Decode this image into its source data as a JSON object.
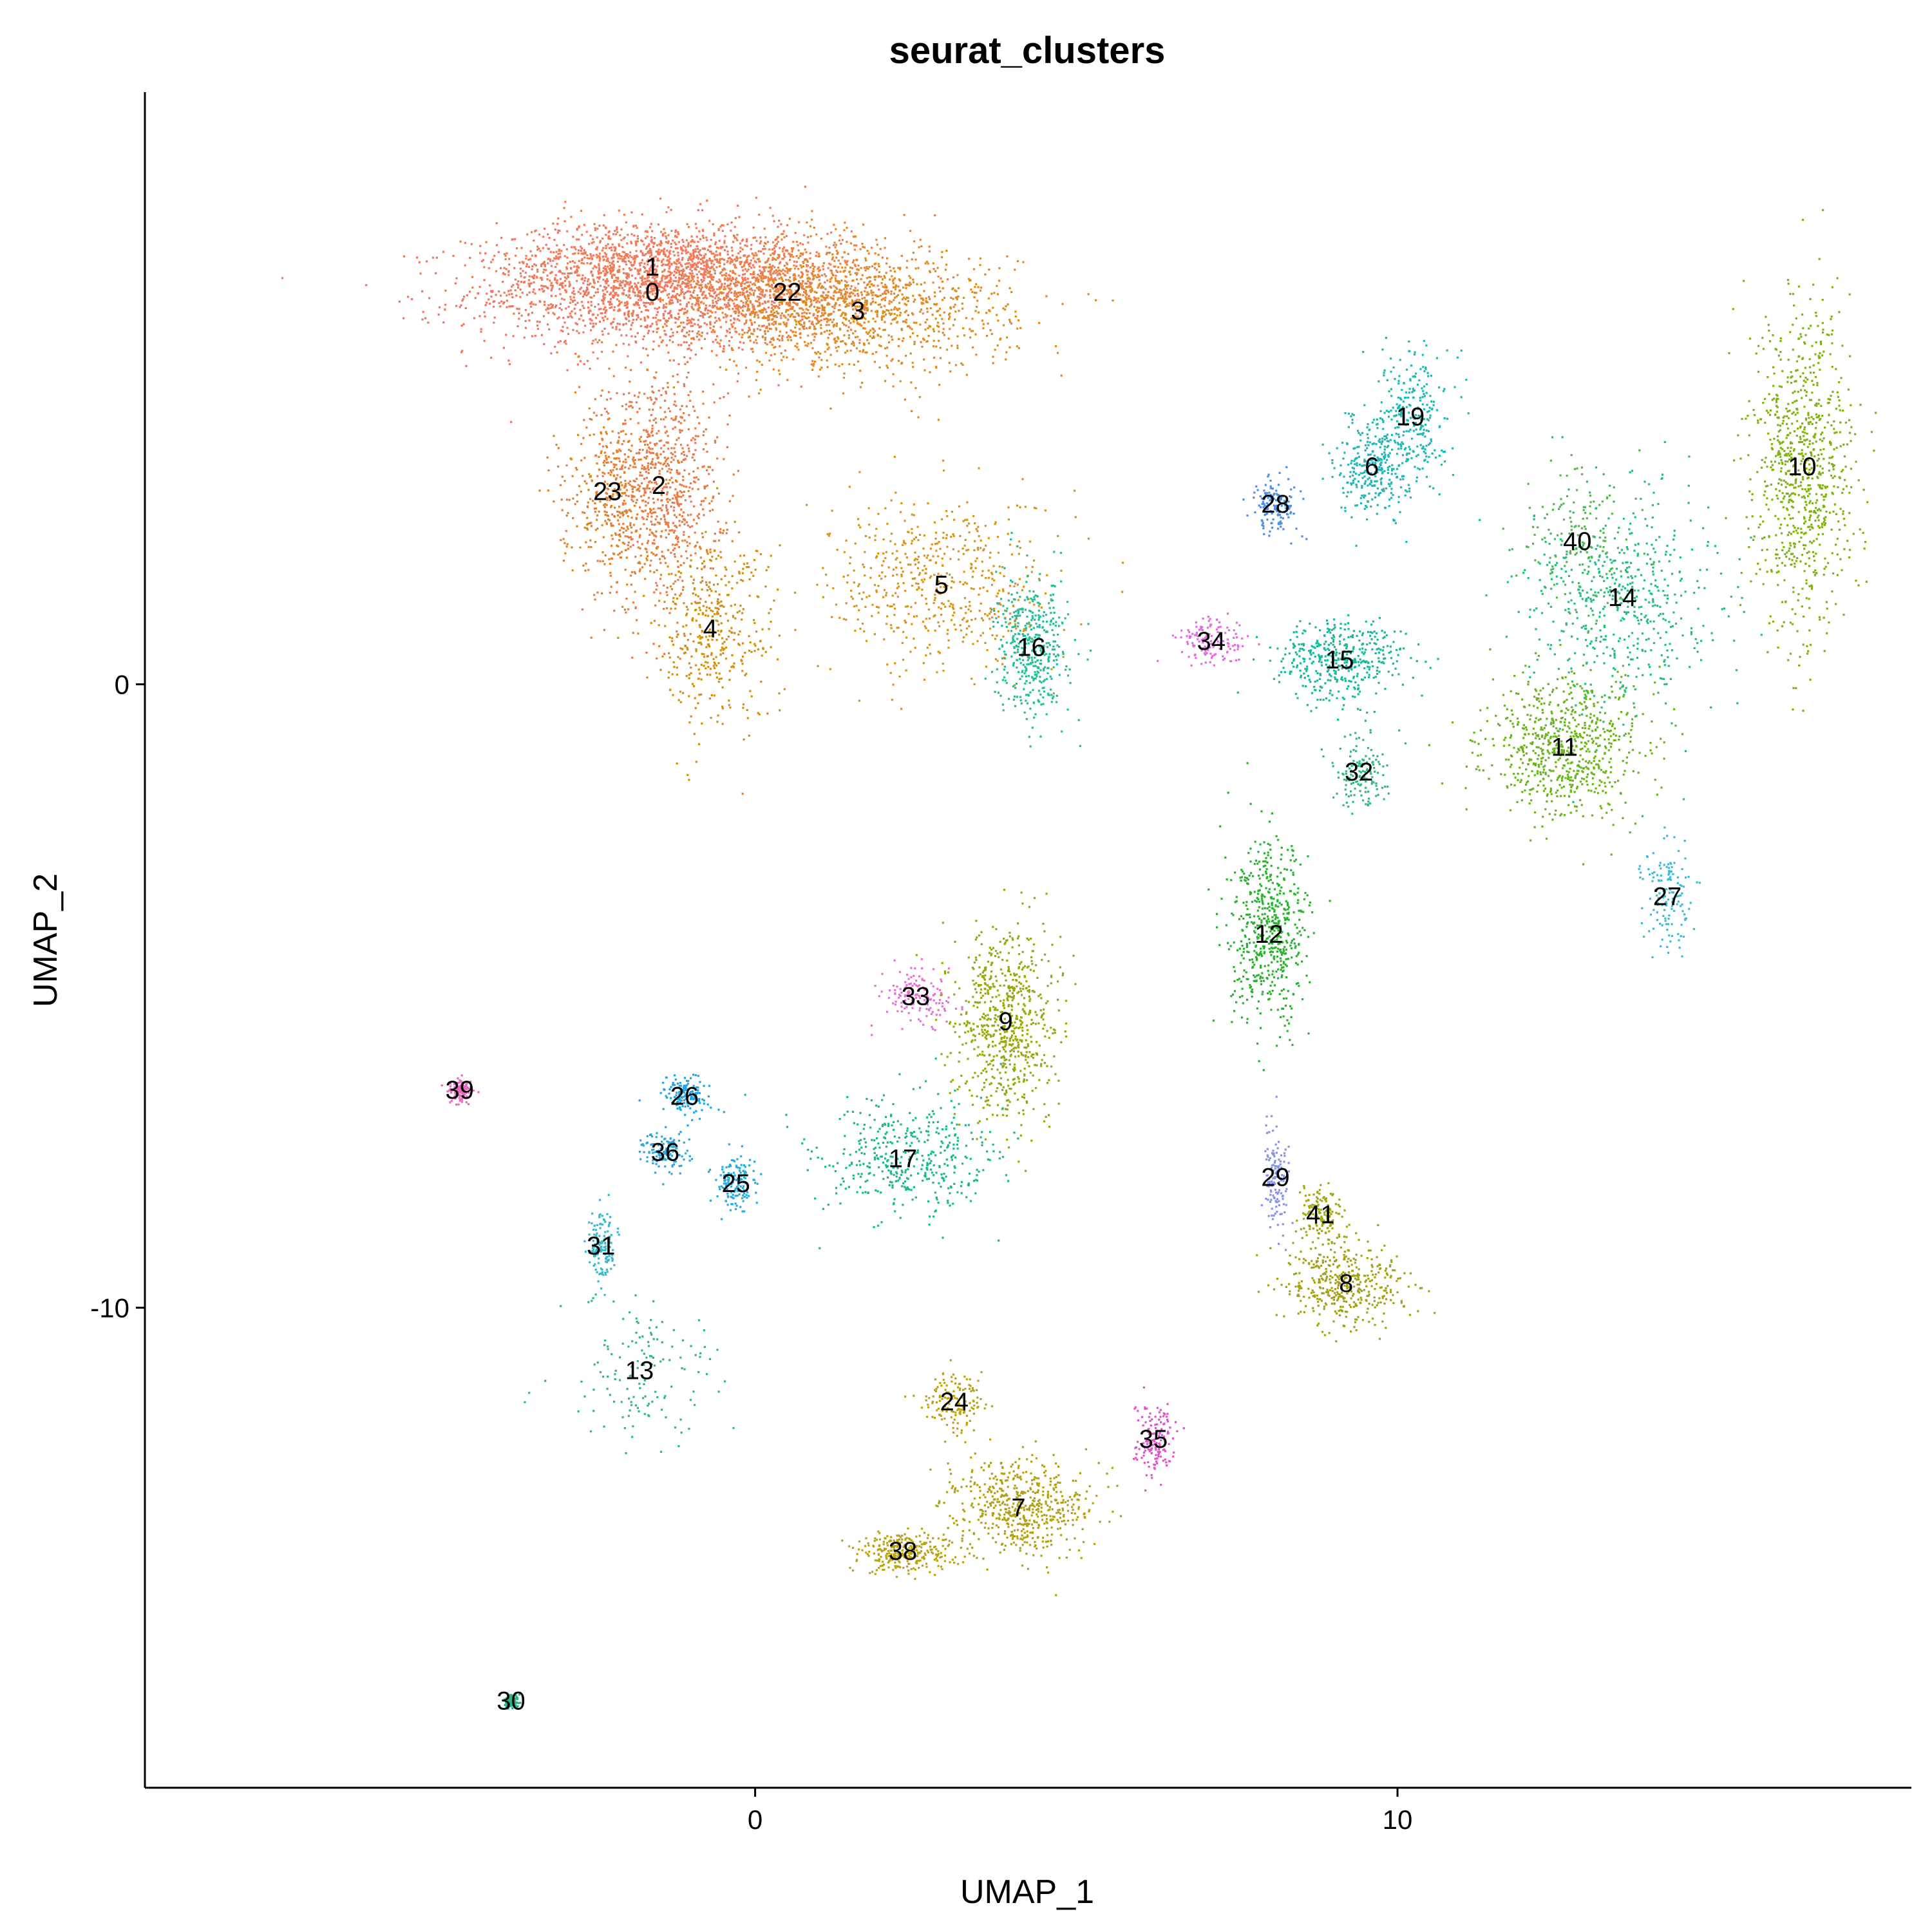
{
  "chart_data": {
    "type": "scatter",
    "title": "seurat_clusters",
    "xlabel": "UMAP_1",
    "ylabel": "UMAP_2",
    "xlim": [
      -9.5,
      18.0
    ],
    "ylim": [
      -17.7,
      9.5
    ],
    "x_ticks": [
      {
        "value": 0,
        "label": "0"
      },
      {
        "value": 10,
        "label": "10"
      }
    ],
    "y_ticks": [
      {
        "value": 0,
        "label": "0"
      },
      {
        "value": -10,
        "label": "-10"
      }
    ],
    "grid": false,
    "legend": "none",
    "clusters": [
      {
        "label": "0",
        "x": -1.6,
        "y": 6.3,
        "color": "#F0775E",
        "sx": 2.6,
        "sy": 0.9,
        "weight": 9
      },
      {
        "label": "1",
        "x": -1.6,
        "y": 6.7,
        "color": "#F37B59",
        "sx": 2.2,
        "sy": 0.7,
        "weight": 8
      },
      {
        "label": "22",
        "x": 0.5,
        "y": 6.3,
        "color": "#EE8242",
        "sx": 1.8,
        "sy": 0.8,
        "weight": 6
      },
      {
        "label": "3",
        "x": 1.6,
        "y": 6.0,
        "color": "#DE8C1C",
        "sx": 2.2,
        "sy": 0.9,
        "weight": 7
      },
      {
        "label": "2",
        "x": -1.5,
        "y": 3.2,
        "color": "#E97B47",
        "sx": 0.9,
        "sy": 1.8,
        "weight": 6
      },
      {
        "label": "23",
        "x": -2.3,
        "y": 3.1,
        "color": "#E0841E",
        "sx": 0.7,
        "sy": 1.2,
        "weight": 2
      },
      {
        "label": "4",
        "x": -0.7,
        "y": 0.9,
        "color": "#D3900E",
        "sx": 0.9,
        "sy": 1.4,
        "weight": 3
      },
      {
        "label": "5",
        "x": 2.9,
        "y": 1.6,
        "color": "#D8951A",
        "sx": 1.6,
        "sy": 1.3,
        "weight": 4
      },
      {
        "label": "16",
        "x": 4.3,
        "y": 0.6,
        "color": "#23BF99",
        "sx": 0.5,
        "sy": 1.0,
        "weight": 3
      },
      {
        "label": "19",
        "x": 10.2,
        "y": 4.3,
        "color": "#19BBB3",
        "sx": 0.5,
        "sy": 1.0,
        "weight": 2
      },
      {
        "label": "6",
        "x": 9.6,
        "y": 3.5,
        "color": "#22B7B6",
        "sx": 0.5,
        "sy": 0.7,
        "weight": 2
      },
      {
        "label": "28",
        "x": 8.1,
        "y": 2.9,
        "color": "#4F8EE8",
        "sx": 0.35,
        "sy": 0.4,
        "weight": 1
      },
      {
        "label": "34",
        "x": 7.1,
        "y": 0.7,
        "color": "#E46CDF",
        "sx": 0.5,
        "sy": 0.35,
        "weight": 1
      },
      {
        "label": "15",
        "x": 9.1,
        "y": 0.4,
        "color": "#16B99B",
        "sx": 0.9,
        "sy": 0.6,
        "weight": 3
      },
      {
        "label": "32",
        "x": 9.4,
        "y": -1.4,
        "color": "#2EBB7E",
        "sx": 0.4,
        "sy": 0.5,
        "weight": 1
      },
      {
        "label": "12",
        "x": 8.0,
        "y": -4.0,
        "color": "#27B42C",
        "sx": 0.55,
        "sy": 1.3,
        "weight": 4
      },
      {
        "label": "10",
        "x": 16.3,
        "y": 3.5,
        "color": "#7FB30E",
        "sx": 0.7,
        "sy": 2.3,
        "weight": 6
      },
      {
        "label": "14",
        "x": 13.5,
        "y": 1.4,
        "color": "#22BE82",
        "sx": 1.3,
        "sy": 1.6,
        "weight": 4
      },
      {
        "label": "40",
        "x": 12.8,
        "y": 2.3,
        "color": "#56B947",
        "sx": 0.8,
        "sy": 1.2,
        "weight": 1
      },
      {
        "label": "11",
        "x": 12.6,
        "y": -1.0,
        "color": "#6AB51A",
        "sx": 1.1,
        "sy": 1.0,
        "weight": 5
      },
      {
        "label": "27",
        "x": 14.2,
        "y": -3.4,
        "color": "#3BBAD9",
        "sx": 0.35,
        "sy": 0.8,
        "weight": 1
      },
      {
        "label": "33",
        "x": 2.5,
        "y": -5.0,
        "color": "#E573D6",
        "sx": 0.5,
        "sy": 0.4,
        "weight": 1
      },
      {
        "label": "9",
        "x": 3.9,
        "y": -5.4,
        "color": "#97A90B",
        "sx": 0.7,
        "sy": 1.4,
        "weight": 5
      },
      {
        "label": "17",
        "x": 2.3,
        "y": -7.6,
        "color": "#19B98E",
        "sx": 1.3,
        "sy": 0.9,
        "weight": 3
      },
      {
        "label": "26",
        "x": -1.1,
        "y": -6.6,
        "color": "#1BA6E6",
        "sx": 0.35,
        "sy": 0.3,
        "weight": 1
      },
      {
        "label": "36",
        "x": -1.4,
        "y": -7.5,
        "color": "#2CA8D8",
        "sx": 0.3,
        "sy": 0.3,
        "weight": 1
      },
      {
        "label": "25",
        "x": -0.3,
        "y": -8.0,
        "color": "#22AEE0",
        "sx": 0.3,
        "sy": 0.4,
        "weight": 1
      },
      {
        "label": "39",
        "x": -4.6,
        "y": -6.5,
        "color": "#E56BBF",
        "sx": 0.15,
        "sy": 0.15,
        "weight": 1
      },
      {
        "label": "31",
        "x": -2.4,
        "y": -9.0,
        "color": "#3FB6C9",
        "sx": 0.2,
        "sy": 0.6,
        "weight": 1
      },
      {
        "label": "13",
        "x": -1.8,
        "y": -11.0,
        "color": "#30B68A",
        "sx": 1.1,
        "sy": 1.1,
        "weight": 1
      },
      {
        "label": "29",
        "x": 8.1,
        "y": -7.9,
        "color": "#8693E6",
        "sx": 0.2,
        "sy": 0.7,
        "weight": 1
      },
      {
        "label": "41",
        "x": 8.8,
        "y": -8.5,
        "color": "#A3A80E",
        "sx": 0.3,
        "sy": 0.4,
        "weight": 1
      },
      {
        "label": "8",
        "x": 9.2,
        "y": -9.6,
        "color": "#A4A113",
        "sx": 0.9,
        "sy": 0.6,
        "weight": 3
      },
      {
        "label": "24",
        "x": 3.1,
        "y": -11.5,
        "color": "#BFA10D",
        "sx": 0.4,
        "sy": 0.4,
        "weight": 1
      },
      {
        "label": "35",
        "x": 6.2,
        "y": -12.1,
        "color": "#E552C9",
        "sx": 0.3,
        "sy": 0.5,
        "weight": 1
      },
      {
        "label": "7",
        "x": 4.1,
        "y": -13.2,
        "color": "#B2A110",
        "sx": 1.0,
        "sy": 0.7,
        "weight": 4
      },
      {
        "label": "38",
        "x": 2.3,
        "y": -13.9,
        "color": "#B9A413",
        "sx": 0.7,
        "sy": 0.3,
        "weight": 2
      },
      {
        "label": "30",
        "x": -3.8,
        "y": -16.3,
        "color": "#28B28E",
        "sx": 0.1,
        "sy": 0.1,
        "weight": 1
      }
    ]
  }
}
